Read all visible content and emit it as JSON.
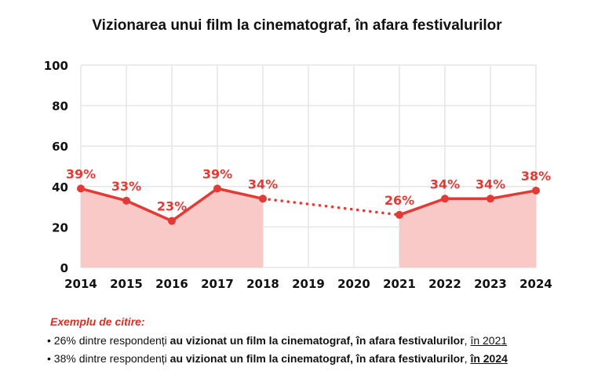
{
  "chart_data": {
    "type": "area",
    "title": "Vizionarea unui film la cinematograf, în afara festivalurilor",
    "xlabel": "",
    "ylabel": "",
    "categories": [
      "2014",
      "2015",
      "2016",
      "2017",
      "2018",
      "2019",
      "2020",
      "2021",
      "2022",
      "2023",
      "2024"
    ],
    "series": [
      {
        "values": [
          39,
          33,
          23,
          39,
          34,
          null,
          null,
          26,
          34,
          34,
          38
        ],
        "labels": [
          "39%",
          "33%",
          "23%",
          "39%",
          "34%",
          "",
          "",
          "26%",
          "34%",
          "34%",
          "38%"
        ]
      }
    ],
    "gap_bridge": {
      "from": "2018",
      "to": "2021",
      "style": "dotted"
    },
    "ylim": [
      0,
      100
    ],
    "yticks": [
      "0",
      "20",
      "40",
      "60",
      "80",
      "100"
    ],
    "grid": true,
    "colors": {
      "line": "#e23b36",
      "fill": "#f8c9c7",
      "grid": "#e6e6e6"
    }
  },
  "notes": {
    "heading": "Exemplu de citire:",
    "lines": [
      {
        "bullet": "•",
        "pre": "26% dintre respondenți ",
        "bold": "au vizionat un film la cinematograf, în afara festivalurilor",
        "sep": ", ",
        "tail": "în 2021"
      },
      {
        "bullet": "•",
        "pre": "38% dintre respondenți ",
        "bold": "au vizionat un film la cinematograf, în afara festivalurilor",
        "sep": ", ",
        "tail": "în 2024"
      }
    ]
  }
}
